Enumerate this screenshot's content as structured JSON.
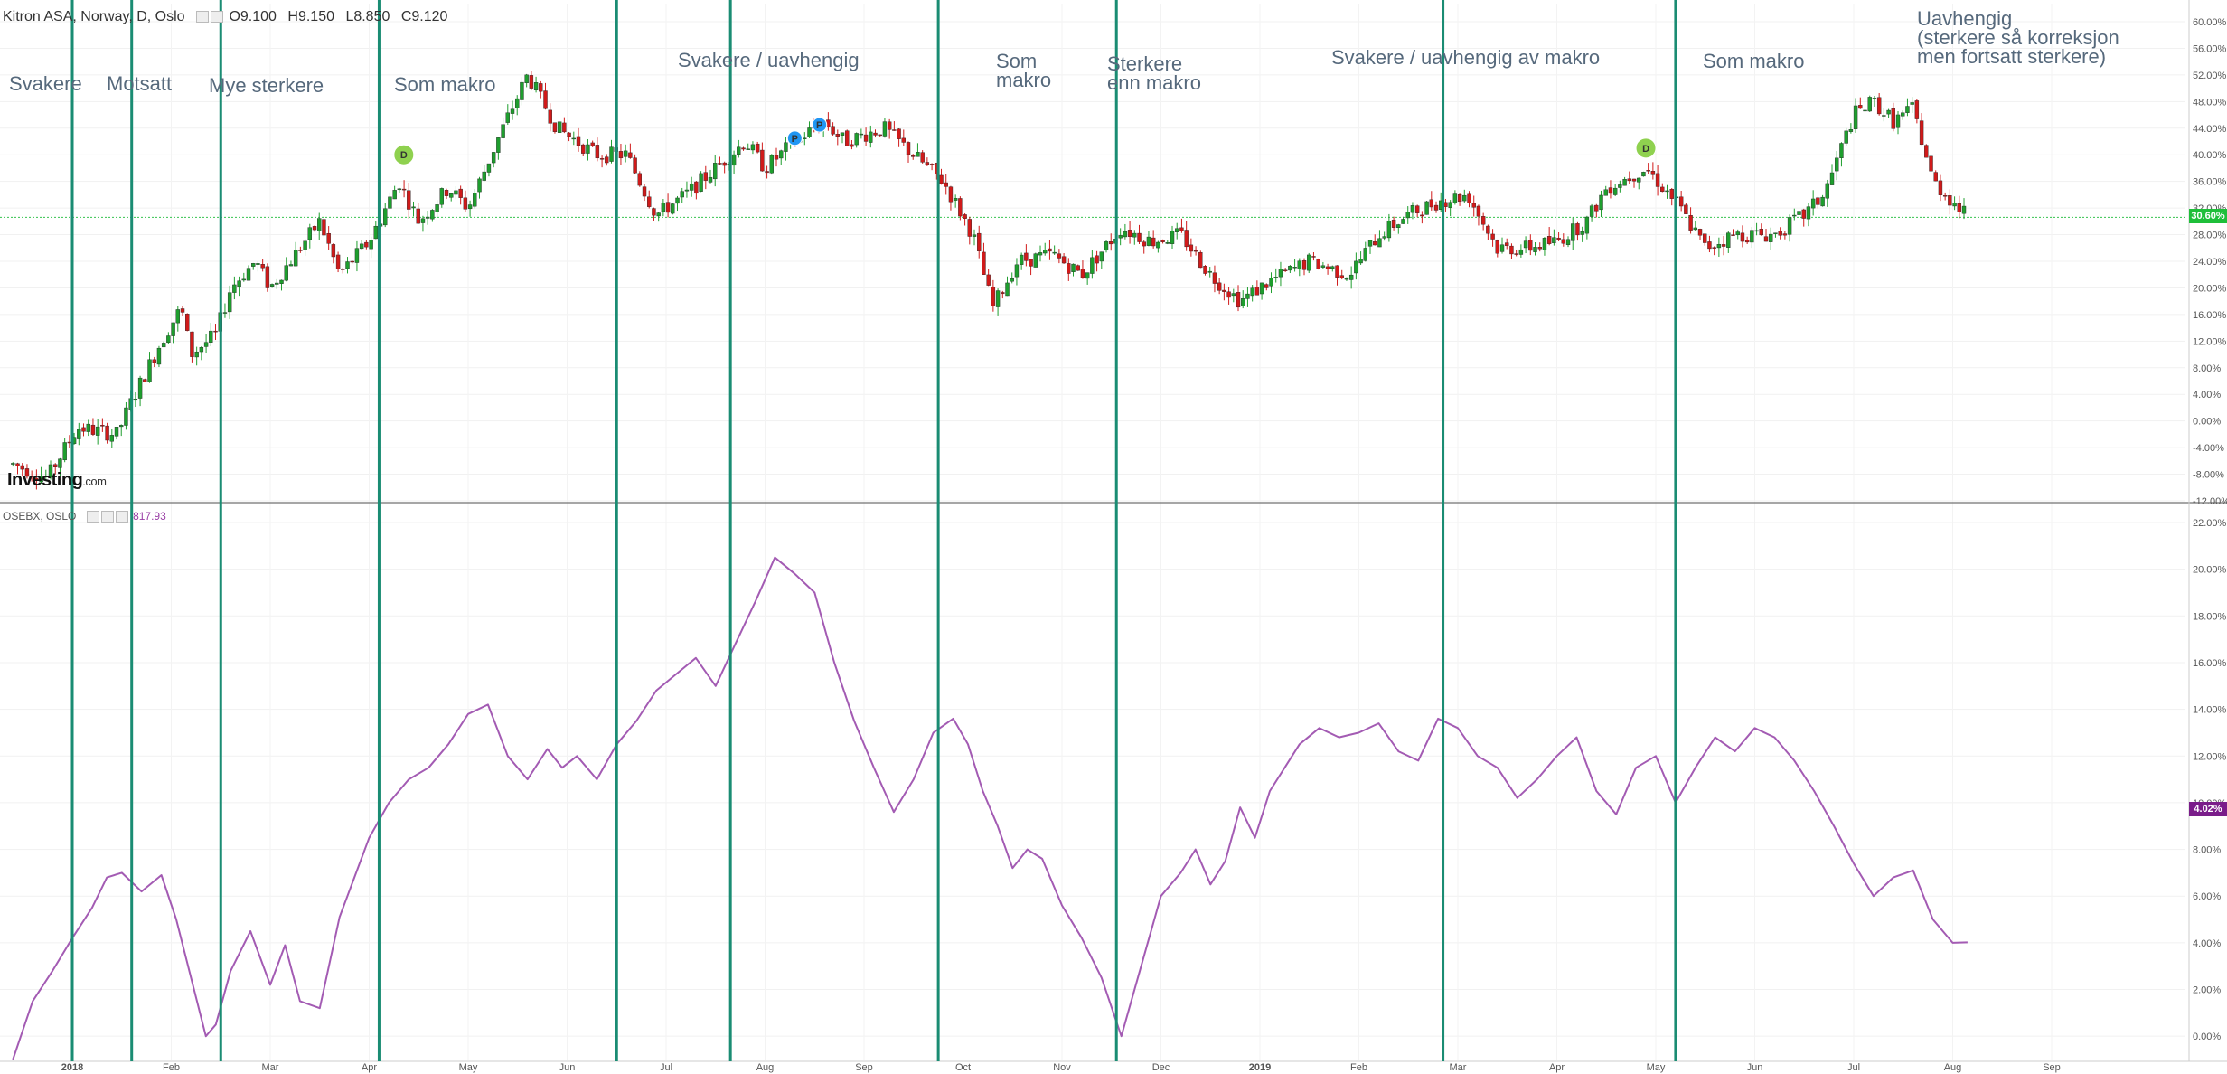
{
  "header": {
    "symbol": "Kitron ASA, Norway, D, Oslo",
    "open": "O9.100",
    "high": "H9.150",
    "low": "L8.850",
    "close": "C9.120"
  },
  "lower_header": {
    "symbol": "OSEBX, OSLO",
    "value": "817.93"
  },
  "logo": {
    "main": "Investing",
    "suffix": ".com"
  },
  "badges": {
    "upper_last": "30.60%",
    "lower_last": "4.02%",
    "upper_color": "#1fbf3a",
    "lower_color": "#7a1d8a"
  },
  "annotations": [
    "Svakere",
    "Motsatt",
    "Mye sterkere",
    "Som makro",
    "Svakere / uavhengig",
    "Som\nmakro",
    "Sterkere\nenn makro",
    "Svakere / uavhengig av makro",
    "Som makro",
    "Uavhengig\n(sterkere så korreksjon\nmen fortsatt sterkere)"
  ],
  "markers": [
    {
      "label": "D",
      "color": "#8fd14f"
    },
    {
      "label": "P",
      "color": "#2196f3"
    },
    {
      "label": "P",
      "color": "#2196f3"
    },
    {
      "label": "D",
      "color": "#8fd14f"
    }
  ],
  "colors": {
    "up": "#1e9e2e",
    "down": "#d01a1a",
    "line": "#a35bb3",
    "divider": "#1a8c73",
    "current_price_line": "#35c24f"
  },
  "chart_data": [
    {
      "type": "candlestick",
      "title": "Kitron ASA, Norway, D, Oslo",
      "y_unit": "%",
      "ylim": [
        -12,
        60
      ],
      "y_ticks": [
        -12,
        -8,
        -4,
        0,
        4,
        8,
        12,
        16,
        20,
        24,
        28,
        32,
        36,
        40,
        44,
        48,
        52,
        56,
        60
      ],
      "x_tick_labels": [
        "2018",
        "Feb",
        "Mar",
        "Apr",
        "May",
        "Jun",
        "Jul",
        "Aug",
        "Sep",
        "Oct",
        "Nov",
        "Dec",
        "2019",
        "Feb",
        "Mar",
        "Apr",
        "May",
        "Jun",
        "Jul",
        "Aug",
        "Sep"
      ],
      "x_tick_indices": [
        0,
        1,
        2,
        3,
        4,
        5,
        6,
        7,
        8,
        9,
        10,
        11,
        12,
        13,
        14,
        15,
        16,
        17,
        18,
        19,
        20
      ],
      "x_range_months": [
        -0.6,
        20.5
      ],
      "trend_anchors": [
        [
          -0.6,
          -6.5
        ],
        [
          -0.25,
          -8.5
        ],
        [
          0.05,
          -1
        ],
        [
          0.45,
          -2
        ],
        [
          0.6,
          3
        ],
        [
          0.9,
          12
        ],
        [
          1.1,
          17
        ],
        [
          1.2,
          10
        ],
        [
          1.45,
          13
        ],
        [
          1.6,
          20
        ],
        [
          1.85,
          24
        ],
        [
          2.0,
          20
        ],
        [
          2.3,
          26
        ],
        [
          2.5,
          30
        ],
        [
          2.7,
          22
        ],
        [
          3.0,
          27
        ],
        [
          3.3,
          36
        ],
        [
          3.5,
          30
        ],
        [
          3.8,
          35
        ],
        [
          4.0,
          32
        ],
        [
          4.35,
          44
        ],
        [
          4.6,
          52
        ],
        [
          4.9,
          44
        ],
        [
          5.3,
          40
        ],
        [
          5.6,
          40
        ],
        [
          5.9,
          31
        ],
        [
          6.2,
          34
        ],
        [
          6.5,
          38
        ],
        [
          6.8,
          42
        ],
        [
          7.0,
          38
        ],
        [
          7.3,
          42
        ],
        [
          7.6,
          45
        ],
        [
          7.8,
          42
        ],
        [
          8.2,
          44
        ],
        [
          8.5,
          40
        ],
        [
          8.8,
          36
        ],
        [
          9.1,
          28
        ],
        [
          9.3,
          17
        ],
        [
          9.55,
          24
        ],
        [
          9.9,
          25
        ],
        [
          10.2,
          22
        ],
        [
          10.6,
          29
        ],
        [
          10.9,
          27
        ],
        [
          11.2,
          28
        ],
        [
          11.5,
          22
        ],
        [
          11.8,
          18
        ],
        [
          12.1,
          21
        ],
        [
          12.5,
          24
        ],
        [
          12.9,
          22
        ],
        [
          13.2,
          28
        ],
        [
          13.5,
          31
        ],
        [
          13.8,
          33
        ],
        [
          14.1,
          34
        ],
        [
          14.4,
          26
        ],
        [
          14.7,
          26
        ],
        [
          15.0,
          27
        ],
        [
          15.3,
          30
        ],
        [
          15.5,
          35
        ],
        [
          15.9,
          38
        ],
        [
          16.2,
          33
        ],
        [
          16.5,
          26
        ],
        [
          16.8,
          28
        ],
        [
          17.2,
          28
        ],
        [
          17.5,
          31
        ],
        [
          17.7,
          34
        ],
        [
          18.0,
          46
        ],
        [
          18.2,
          48
        ],
        [
          18.4,
          45
        ],
        [
          18.6,
          47
        ],
        [
          18.8,
          36
        ],
        [
          19.0,
          33
        ],
        [
          19.15,
          30.6
        ]
      ],
      "last_value": 30.6,
      "current_price_level": 30.6,
      "ohlc_last": {
        "open": 9.1,
        "high": 9.15,
        "low": 8.85,
        "close": 9.12
      }
    },
    {
      "type": "line",
      "title": "OSEBX, OSLO",
      "y_unit": "%",
      "ylim": [
        -1,
        22
      ],
      "y_ticks": [
        0,
        2,
        4,
        6,
        8,
        10,
        12,
        14,
        16,
        18,
        20,
        22
      ],
      "x_tick_labels": [
        "2018",
        "Feb",
        "Mar",
        "Apr",
        "May",
        "Jun",
        "Jul",
        "Aug",
        "Sep",
        "Oct",
        "Nov",
        "Dec",
        "2019",
        "Feb",
        "Mar",
        "Apr",
        "May",
        "Jun",
        "Jul",
        "Aug",
        "Sep"
      ],
      "x": [
        -0.6,
        -0.4,
        -0.2,
        0.0,
        0.2,
        0.35,
        0.5,
        0.7,
        0.9,
        1.05,
        1.2,
        1.35,
        1.45,
        1.6,
        1.8,
        2.0,
        2.15,
        2.3,
        2.5,
        2.7,
        2.85,
        3.0,
        3.2,
        3.4,
        3.6,
        3.8,
        4.0,
        4.2,
        4.4,
        4.6,
        4.8,
        4.95,
        5.1,
        5.3,
        5.5,
        5.7,
        5.9,
        6.1,
        6.3,
        6.5,
        6.7,
        6.9,
        7.1,
        7.3,
        7.5,
        7.7,
        7.9,
        8.1,
        8.3,
        8.5,
        8.7,
        8.9,
        9.05,
        9.2,
        9.35,
        9.5,
        9.65,
        9.8,
        10.0,
        10.2,
        10.4,
        10.6,
        10.8,
        11.0,
        11.2,
        11.35,
        11.5,
        11.65,
        11.8,
        11.95,
        12.1,
        12.25,
        12.4,
        12.6,
        12.8,
        13.0,
        13.2,
        13.4,
        13.6,
        13.8,
        14.0,
        14.2,
        14.4,
        14.6,
        14.8,
        15.0,
        15.2,
        15.4,
        15.6,
        15.8,
        16.0,
        16.2,
        16.4,
        16.6,
        16.8,
        17.0,
        17.2,
        17.4,
        17.6,
        17.8,
        18.0,
        18.2,
        18.4,
        18.6,
        18.8,
        19.0,
        19.15
      ],
      "y": [
        -1,
        1.5,
        2.8,
        4.2,
        5.5,
        6.8,
        7.0,
        6.2,
        6.9,
        5.0,
        2.5,
        0.0,
        0.5,
        2.8,
        4.5,
        2.2,
        3.9,
        1.5,
        1.2,
        5.1,
        6.8,
        8.5,
        10.0,
        11.0,
        11.5,
        12.5,
        13.8,
        14.2,
        12.0,
        11.0,
        12.3,
        11.5,
        12.0,
        11.0,
        12.5,
        13.5,
        14.8,
        15.5,
        16.2,
        15.0,
        16.8,
        18.6,
        20.5,
        19.8,
        19.0,
        16.0,
        13.5,
        11.5,
        9.6,
        11.0,
        13.0,
        13.6,
        12.5,
        10.5,
        9.0,
        7.2,
        8.0,
        7.6,
        5.6,
        4.2,
        2.5,
        0.0,
        3.0,
        6.0,
        7.0,
        8.0,
        6.5,
        7.5,
        9.8,
        8.5,
        10.5,
        11.5,
        12.5,
        13.2,
        12.8,
        13.0,
        13.4,
        12.2,
        11.8,
        13.6,
        13.2,
        12.0,
        11.5,
        10.2,
        11.0,
        12.0,
        12.8,
        10.5,
        9.5,
        11.5,
        12.0,
        10.0,
        11.5,
        12.8,
        12.2,
        13.2,
        12.8,
        11.8,
        10.5,
        9.0,
        7.4,
        6.0,
        6.8,
        7.1,
        5.0,
        4.0,
        4.02
      ],
      "last_value": 4.02
    }
  ]
}
